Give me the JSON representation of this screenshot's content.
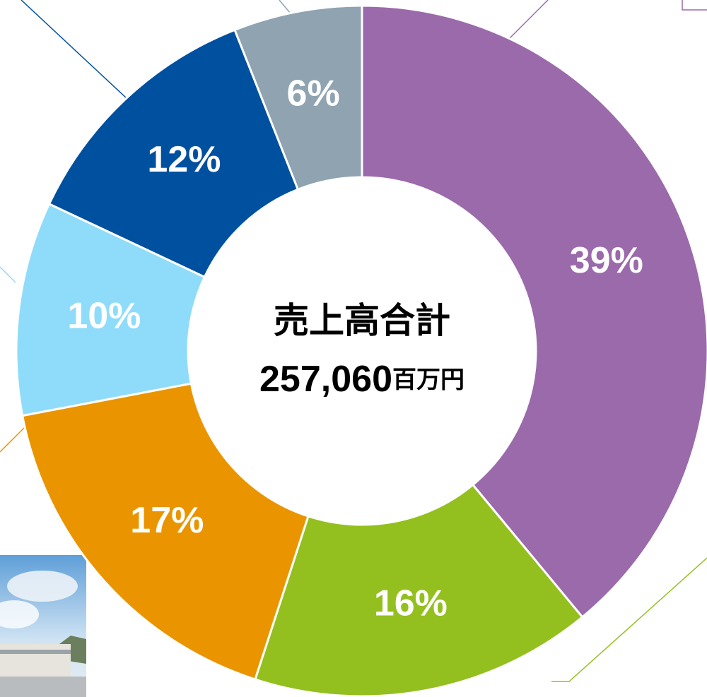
{
  "chart_data": {
    "type": "pie",
    "donut": true,
    "center_title": "売上高合計",
    "total": {
      "value": 257060,
      "label": "257,060"
    },
    "total_unit": "百万円",
    "values": [
      39,
      16,
      17,
      10,
      12,
      6
    ],
    "value_labels": [
      "39%",
      "16%",
      "17%",
      "10%",
      "12%",
      "6%"
    ],
    "colors": [
      "#9b6aab",
      "#93c01f",
      "#ea9500",
      "#8fdcfa",
      "#0050a0",
      "#8fa3b1"
    ]
  }
}
